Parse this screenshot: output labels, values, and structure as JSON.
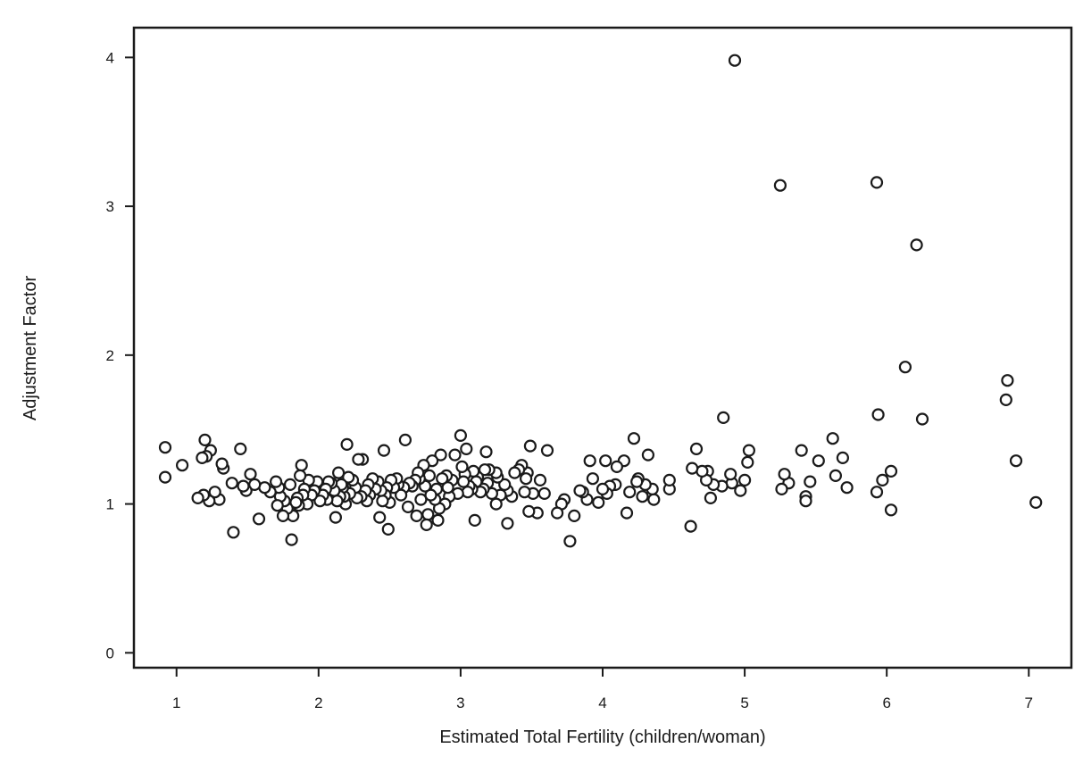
{
  "chart_data": {
    "type": "scatter",
    "title": "",
    "xlabel": "Estimated Total Fertility (children/woman)",
    "ylabel": "Adjustment Factor",
    "xlim": [
      0.7,
      7.3
    ],
    "ylim": [
      -0.1,
      4.2
    ],
    "xticks": [
      "1",
      "2",
      "3",
      "4",
      "5",
      "6",
      "7"
    ],
    "yticks": [
      "0",
      "1",
      "2",
      "3",
      "4"
    ],
    "grid": false,
    "marker": "open-circle",
    "marker_color": "#1a1a1a",
    "points": [
      [
        4.93,
        3.98
      ],
      [
        5.25,
        3.14
      ],
      [
        5.93,
        3.16
      ],
      [
        6.21,
        2.74
      ],
      [
        6.13,
        1.92
      ],
      [
        6.85,
        1.83
      ],
      [
        6.84,
        1.7
      ],
      [
        6.25,
        1.57
      ],
      [
        5.94,
        1.6
      ],
      [
        4.85,
        1.58
      ],
      [
        6.91,
        1.29
      ],
      [
        7.05,
        1.01
      ],
      [
        6.03,
        0.96
      ],
      [
        5.93,
        1.08
      ],
      [
        5.97,
        1.16
      ],
      [
        6.03,
        1.22
      ],
      [
        5.72,
        1.11
      ],
      [
        5.69,
        1.31
      ],
      [
        5.64,
        1.19
      ],
      [
        5.62,
        1.44
      ],
      [
        5.52,
        1.29
      ],
      [
        5.46,
        1.15
      ],
      [
        5.43,
        1.05
      ],
      [
        5.43,
        1.02
      ],
      [
        5.4,
        1.36
      ],
      [
        5.31,
        1.14
      ],
      [
        5.28,
        1.2
      ],
      [
        5.26,
        1.1
      ],
      [
        5.03,
        1.36
      ],
      [
        5.02,
        1.28
      ],
      [
        5.0,
        1.16
      ],
      [
        4.97,
        1.09
      ],
      [
        4.91,
        1.14
      ],
      [
        4.9,
        1.2
      ],
      [
        4.84,
        1.12
      ],
      [
        4.78,
        1.13
      ],
      [
        4.76,
        1.04
      ],
      [
        4.74,
        1.22
      ],
      [
        4.73,
        1.16
      ],
      [
        4.7,
        1.22
      ],
      [
        4.66,
        1.37
      ],
      [
        4.63,
        1.24
      ],
      [
        4.62,
        0.85
      ],
      [
        4.47,
        1.1
      ],
      [
        4.47,
        1.16
      ],
      [
        4.36,
        1.03
      ],
      [
        4.35,
        1.1
      ],
      [
        4.32,
        1.33
      ],
      [
        4.3,
        1.13
      ],
      [
        4.28,
        1.05
      ],
      [
        4.25,
        1.17
      ],
      [
        4.24,
        1.15
      ],
      [
        4.22,
        1.44
      ],
      [
        4.19,
        1.08
      ],
      [
        4.17,
        0.94
      ],
      [
        4.15,
        1.29
      ],
      [
        4.1,
        1.25
      ],
      [
        4.09,
        1.13
      ],
      [
        4.05,
        1.12
      ],
      [
        4.03,
        1.07
      ],
      [
        4.02,
        1.29
      ],
      [
        4.0,
        1.1
      ],
      [
        3.97,
        1.01
      ],
      [
        3.93,
        1.17
      ],
      [
        3.91,
        1.29
      ],
      [
        3.89,
        1.03
      ],
      [
        3.86,
        1.08
      ],
      [
        3.84,
        1.09
      ],
      [
        3.8,
        0.92
      ],
      [
        3.77,
        0.75
      ],
      [
        3.73,
        1.03
      ],
      [
        3.71,
        1.0
      ],
      [
        3.68,
        0.94
      ],
      [
        3.61,
        1.36
      ],
      [
        3.59,
        1.07
      ],
      [
        3.56,
        1.16
      ],
      [
        3.54,
        0.94
      ],
      [
        3.51,
        1.07
      ],
      [
        3.49,
        1.39
      ],
      [
        3.48,
        0.95
      ],
      [
        3.47,
        1.21
      ],
      [
        3.46,
        1.17
      ],
      [
        3.45,
        1.08
      ],
      [
        3.43,
        1.26
      ],
      [
        3.41,
        1.23
      ],
      [
        3.38,
        1.21
      ],
      [
        3.36,
        1.05
      ],
      [
        3.33,
        1.09
      ],
      [
        3.33,
        0.87
      ],
      [
        3.31,
        1.13
      ],
      [
        3.28,
        1.06
      ],
      [
        3.26,
        1.18
      ],
      [
        3.25,
        1.21
      ],
      [
        3.25,
        1.0
      ],
      [
        3.22,
        1.07
      ],
      [
        3.2,
        1.23
      ],
      [
        3.19,
        1.14
      ],
      [
        3.18,
        1.35
      ],
      [
        3.17,
        1.23
      ],
      [
        3.16,
        1.1
      ],
      [
        3.14,
        1.08
      ],
      [
        3.12,
        1.18
      ],
      [
        3.11,
        1.15
      ],
      [
        3.1,
        0.89
      ],
      [
        3.09,
        1.22
      ],
      [
        3.08,
        1.1
      ],
      [
        3.06,
        1.12
      ],
      [
        3.05,
        1.08
      ],
      [
        3.04,
        1.37
      ],
      [
        3.03,
        1.2
      ],
      [
        3.02,
        1.15
      ],
      [
        3.01,
        1.25
      ],
      [
        3.0,
        1.46
      ],
      [
        2.98,
        1.07
      ],
      [
        2.96,
        1.33
      ],
      [
        2.94,
        1.16
      ],
      [
        2.92,
        1.05
      ],
      [
        2.91,
        1.11
      ],
      [
        2.9,
        1.19
      ],
      [
        2.89,
        1.0
      ],
      [
        2.87,
        1.17
      ],
      [
        2.86,
        1.33
      ],
      [
        2.85,
        0.97
      ],
      [
        2.84,
        0.89
      ],
      [
        2.83,
        1.1
      ],
      [
        2.82,
        1.03
      ],
      [
        2.8,
        1.29
      ],
      [
        2.79,
        1.06
      ],
      [
        2.78,
        1.19
      ],
      [
        2.77,
        0.93
      ],
      [
        2.76,
        0.86
      ],
      [
        2.75,
        1.12
      ],
      [
        2.74,
        1.26
      ],
      [
        2.72,
        1.03
      ],
      [
        2.71,
        1.17
      ],
      [
        2.7,
        1.21
      ],
      [
        2.69,
        0.92
      ],
      [
        2.68,
        1.16
      ],
      [
        2.66,
        1.12
      ],
      [
        2.64,
        1.14
      ],
      [
        2.63,
        0.98
      ],
      [
        2.61,
        1.43
      ],
      [
        2.6,
        1.11
      ],
      [
        2.58,
        1.06
      ],
      [
        2.56,
        1.13
      ],
      [
        2.55,
        1.17
      ],
      [
        2.53,
        1.11
      ],
      [
        2.51,
        1.16
      ],
      [
        2.5,
        1.01
      ],
      [
        2.49,
        0.83
      ],
      [
        2.48,
        1.11
      ],
      [
        2.47,
        1.06
      ],
      [
        2.46,
        1.36
      ],
      [
        2.45,
        1.02
      ],
      [
        2.44,
        1.09
      ],
      [
        2.43,
        0.91
      ],
      [
        2.42,
        1.15
      ],
      [
        2.4,
        1.1
      ],
      [
        2.38,
        1.17
      ],
      [
        2.36,
        1.06
      ],
      [
        2.35,
        1.13
      ],
      [
        2.34,
        1.02
      ],
      [
        2.33,
        1.09
      ],
      [
        2.31,
        1.3
      ],
      [
        2.3,
        1.05
      ],
      [
        2.28,
        1.3
      ],
      [
        2.27,
        1.04
      ],
      [
        2.26,
        1.11
      ],
      [
        2.24,
        1.16
      ],
      [
        2.22,
        1.07
      ],
      [
        2.21,
        1.18
      ],
      [
        2.2,
        1.4
      ],
      [
        2.19,
        1.0
      ],
      [
        2.18,
        1.05
      ],
      [
        2.17,
        1.11
      ],
      [
        2.16,
        1.13
      ],
      [
        2.15,
        1.05
      ],
      [
        2.14,
        1.21
      ],
      [
        2.13,
        1.02
      ],
      [
        2.12,
        0.91
      ],
      [
        2.11,
        1.09
      ],
      [
        2.09,
        1.14
      ],
      [
        2.07,
        1.15
      ],
      [
        2.06,
        1.03
      ],
      [
        2.05,
        1.1
      ],
      [
        2.03,
        1.06
      ],
      [
        2.01,
        1.02
      ],
      [
        1.99,
        1.15
      ],
      [
        1.97,
        1.09
      ],
      [
        1.95,
        1.06
      ],
      [
        1.93,
        1.16
      ],
      [
        1.92,
        1.0
      ],
      [
        1.9,
        1.1
      ],
      [
        1.89,
        1.06
      ],
      [
        1.88,
        1.26
      ],
      [
        1.87,
        1.19
      ],
      [
        1.86,
        0.99
      ],
      [
        1.85,
        1.04
      ],
      [
        1.84,
        1.01
      ],
      [
        1.82,
        0.92
      ],
      [
        1.81,
        0.76
      ],
      [
        1.8,
        1.13
      ],
      [
        1.78,
        0.97
      ],
      [
        1.76,
        1.02
      ],
      [
        1.75,
        0.92
      ],
      [
        1.73,
        1.05
      ],
      [
        1.72,
        1.11
      ],
      [
        1.71,
        0.99
      ],
      [
        1.7,
        1.15
      ],
      [
        1.66,
        1.08
      ],
      [
        1.62,
        1.11
      ],
      [
        1.58,
        0.9
      ],
      [
        1.55,
        1.13
      ],
      [
        1.52,
        1.2
      ],
      [
        1.49,
        1.09
      ],
      [
        1.47,
        1.12
      ],
      [
        1.45,
        1.37
      ],
      [
        1.39,
        1.14
      ],
      [
        1.4,
        0.81
      ],
      [
        1.33,
        1.24
      ],
      [
        1.32,
        1.27
      ],
      [
        1.3,
        1.03
      ],
      [
        1.27,
        1.08
      ],
      [
        1.24,
        1.36
      ],
      [
        1.23,
        1.02
      ],
      [
        1.21,
        1.32
      ],
      [
        1.2,
        1.43
      ],
      [
        1.19,
        1.06
      ],
      [
        1.18,
        1.31
      ],
      [
        1.15,
        1.04
      ],
      [
        1.04,
        1.26
      ],
      [
        0.92,
        1.38
      ],
      [
        0.92,
        1.18
      ]
    ]
  }
}
